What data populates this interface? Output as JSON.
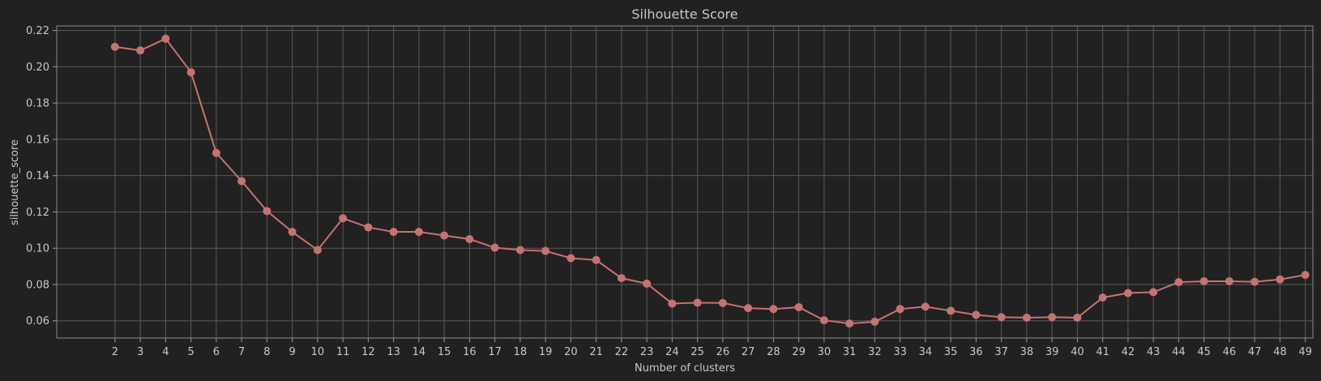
{
  "chart_data": {
    "type": "line",
    "title": "Silhouette Score",
    "xlabel": "Number of clusters",
    "ylabel": "silhouette_score",
    "x": [
      2,
      3,
      4,
      5,
      6,
      7,
      8,
      9,
      10,
      11,
      12,
      13,
      14,
      15,
      16,
      17,
      18,
      19,
      20,
      21,
      22,
      23,
      24,
      25,
      26,
      27,
      28,
      29,
      30,
      31,
      32,
      33,
      34,
      35,
      36,
      37,
      38,
      39,
      40,
      41,
      42,
      43,
      44,
      45,
      46,
      47,
      48,
      49
    ],
    "series": [
      {
        "values": [
          0.211,
          0.209,
          0.2155,
          0.197,
          0.1525,
          0.137,
          0.1205,
          0.109,
          0.099,
          0.1165,
          0.1115,
          0.109,
          0.109,
          0.107,
          0.105,
          0.1003,
          0.099,
          0.0985,
          0.0945,
          0.0935,
          0.0835,
          0.0805,
          0.0695,
          0.07,
          0.0698,
          0.067,
          0.0665,
          0.0675,
          0.0603,
          0.0585,
          0.0595,
          0.0665,
          0.0678,
          0.0655,
          0.0633,
          0.062,
          0.0617,
          0.062,
          0.0617,
          0.0728,
          0.0753,
          0.0758,
          0.0813,
          0.0818,
          0.0818,
          0.0815,
          0.0828,
          0.0853
        ],
        "color": "#c57371"
      }
    ],
    "ylim": [
      0.0505,
      0.2225
    ],
    "xlim": [
      -0.3,
      49.3
    ],
    "yticks": [
      0.06,
      0.08,
      0.1,
      0.12,
      0.14,
      0.16,
      0.18,
      0.2,
      0.22
    ],
    "ytick_labels": [
      "0.06",
      "0.08",
      "0.10",
      "0.12",
      "0.14",
      "0.16",
      "0.18",
      "0.20",
      "0.22"
    ],
    "grid": true,
    "background": "#212121",
    "grid_color": "#5a5a5a",
    "text_color": "#c8c8c8",
    "marker": "circle"
  }
}
